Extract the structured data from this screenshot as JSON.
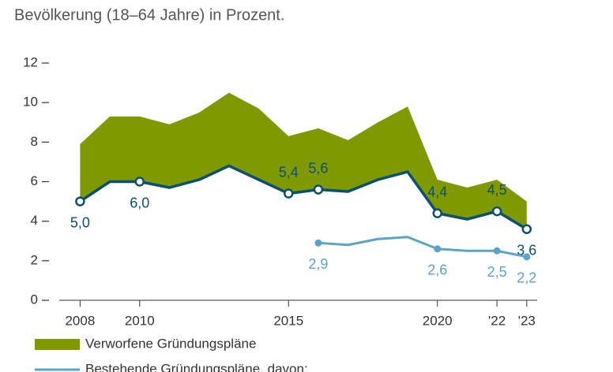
{
  "chart_data": {
    "type": "line",
    "subtitle": "Bevölkerung (18–64 Jahre) in Prozent.",
    "x": [
      2008,
      2009,
      2010,
      2011,
      2012,
      2013,
      2014,
      2015,
      2016,
      2017,
      2018,
      2019,
      2020,
      2021,
      2022,
      2023
    ],
    "xlim": [
      2007.3,
      2023.35
    ],
    "xticks": [
      2008,
      2010,
      2015,
      2020,
      {
        "value": 2022,
        "label": "'22"
      },
      {
        "value": 2023,
        "label": "'23"
      }
    ],
    "ylim": [
      0,
      12
    ],
    "yticks": [
      0,
      2,
      4,
      6,
      8,
      10,
      12
    ],
    "series": [
      {
        "color": "#0b4f74",
        "kind": "line",
        "values": [
          5.0,
          6.0,
          6.0,
          5.7,
          6.1,
          6.8,
          6.1,
          5.4,
          5.6,
          5.5,
          6.1,
          6.5,
          4.4,
          4.1,
          4.5,
          3.6
        ],
        "value_labels": [
          "5,0",
          null,
          "6,0",
          null,
          null,
          null,
          null,
          "5,4",
          "5,6",
          null,
          null,
          null,
          "4,4",
          null,
          "4,5",
          "3,6"
        ]
      },
      {
        "name": "Verworfene Gründungspläne",
        "color": "#7f9a00",
        "kind": "area",
        "stacked_on": 0,
        "values": [
          2.9,
          3.3,
          3.3,
          3.2,
          3.4,
          3.7,
          3.6,
          2.9,
          3.1,
          2.6,
          2.9,
          3.3,
          1.7,
          1.6,
          1.6,
          1.4
        ]
      },
      {
        "name": "Bestehende Gründungspläne, davon:",
        "color": "#5ba3c7",
        "kind": "line",
        "values": [
          null,
          null,
          null,
          null,
          null,
          null,
          null,
          null,
          2.9,
          2.8,
          3.1,
          3.2,
          2.6,
          2.5,
          2.5,
          2.2
        ],
        "value_labels": [
          null,
          null,
          null,
          null,
          null,
          null,
          null,
          null,
          "2,9",
          null,
          null,
          null,
          "2,6",
          null,
          "2,5",
          "2,2"
        ]
      }
    ]
  }
}
